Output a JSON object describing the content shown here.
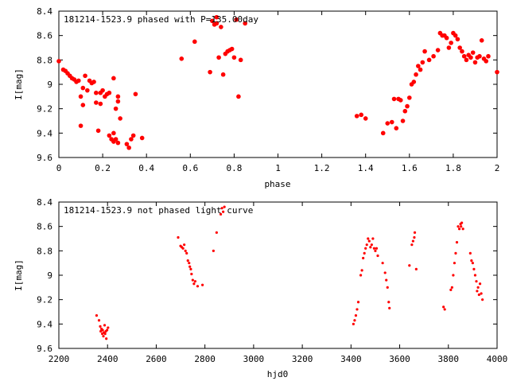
{
  "chart_data": [
    {
      "type": "scatter",
      "title": "181214-1523.9 phased with P=135.00day",
      "xlabel": "phase",
      "ylabel": "I[mag]",
      "xlim": [
        0,
        2
      ],
      "ylim": [
        9.6,
        8.4
      ],
      "y_inverted": true,
      "grid": false,
      "marker_color": "#ff0000",
      "x_ticks": [
        0,
        0.2,
        0.4,
        0.6,
        0.8,
        1,
        1.2,
        1.4,
        1.6,
        1.8,
        2
      ],
      "x_tick_labels": [
        "0",
        "0.2",
        "0.4",
        "0.6",
        "0.8",
        "1",
        "1.2",
        "1.4",
        "1.6",
        "1.8",
        "2"
      ],
      "y_ticks": [
        8.4,
        8.6,
        8.8,
        9,
        9.2,
        9.4,
        9.6
      ],
      "y_tick_labels": [
        "8.4",
        "8.6",
        "8.8",
        "9",
        "9.2",
        "9.4",
        "9.6"
      ],
      "points": [
        [
          0.0,
          8.81
        ],
        [
          0.02,
          8.88
        ],
        [
          0.03,
          8.89
        ],
        [
          0.04,
          8.91
        ],
        [
          0.05,
          8.93
        ],
        [
          0.06,
          8.95
        ],
        [
          0.07,
          8.96
        ],
        [
          0.08,
          8.98
        ],
        [
          0.09,
          8.97
        ],
        [
          0.1,
          9.1
        ],
        [
          0.1,
          9.34
        ],
        [
          0.11,
          9.03
        ],
        [
          0.11,
          9.17
        ],
        [
          0.12,
          8.93
        ],
        [
          0.13,
          9.05
        ],
        [
          0.14,
          8.97
        ],
        [
          0.15,
          8.99
        ],
        [
          0.16,
          8.98
        ],
        [
          0.17,
          9.07
        ],
        [
          0.17,
          9.15
        ],
        [
          0.18,
          9.38
        ],
        [
          0.19,
          9.16
        ],
        [
          0.19,
          9.07
        ],
        [
          0.2,
          9.05
        ],
        [
          0.21,
          9.1
        ],
        [
          0.22,
          9.08
        ],
        [
          0.23,
          9.07
        ],
        [
          0.23,
          9.42
        ],
        [
          0.24,
          9.45
        ],
        [
          0.25,
          9.4
        ],
        [
          0.25,
          9.47
        ],
        [
          0.26,
          9.45
        ],
        [
          0.27,
          9.48
        ],
        [
          0.25,
          8.95
        ],
        [
          0.26,
          9.2
        ],
        [
          0.27,
          9.14
        ],
        [
          0.28,
          9.28
        ],
        [
          0.27,
          9.1
        ],
        [
          0.31,
          9.49
        ],
        [
          0.32,
          9.52
        ],
        [
          0.33,
          9.45
        ],
        [
          0.34,
          9.42
        ],
        [
          0.35,
          9.08
        ],
        [
          0.38,
          9.44
        ],
        [
          0.56,
          8.79
        ],
        [
          0.62,
          8.65
        ],
        [
          0.69,
          8.9
        ],
        [
          0.7,
          8.48
        ],
        [
          0.71,
          8.51
        ],
        [
          0.72,
          8.5
        ],
        [
          0.72,
          8.45
        ],
        [
          0.73,
          8.78
        ],
        [
          0.74,
          8.53
        ],
        [
          0.75,
          8.92
        ],
        [
          0.76,
          8.75
        ],
        [
          0.77,
          8.73
        ],
        [
          0.78,
          8.72
        ],
        [
          0.79,
          8.71
        ],
        [
          0.8,
          8.78
        ],
        [
          0.81,
          8.47
        ],
        [
          0.82,
          9.1
        ],
        [
          0.83,
          8.8
        ],
        [
          0.85,
          8.5
        ],
        [
          1.36,
          9.26
        ],
        [
          1.38,
          9.25
        ],
        [
          1.4,
          9.28
        ],
        [
          1.48,
          9.4
        ],
        [
          1.5,
          9.32
        ],
        [
          1.52,
          9.31
        ],
        [
          1.53,
          9.12
        ],
        [
          1.54,
          9.36
        ],
        [
          1.55,
          9.12
        ],
        [
          1.56,
          9.13
        ],
        [
          1.57,
          9.3
        ],
        [
          1.58,
          9.22
        ],
        [
          1.59,
          9.18
        ],
        [
          1.6,
          9.11
        ],
        [
          1.61,
          9.0
        ],
        [
          1.62,
          8.98
        ],
        [
          1.63,
          8.92
        ],
        [
          1.64,
          8.85
        ],
        [
          1.65,
          8.88
        ],
        [
          1.66,
          8.82
        ],
        [
          1.67,
          8.73
        ],
        [
          1.69,
          8.8
        ],
        [
          1.71,
          8.77
        ],
        [
          1.73,
          8.72
        ],
        [
          1.74,
          8.58
        ],
        [
          1.75,
          8.6
        ],
        [
          1.76,
          8.6
        ],
        [
          1.77,
          8.62
        ],
        [
          1.78,
          8.7
        ],
        [
          1.79,
          8.66
        ],
        [
          1.8,
          8.58
        ],
        [
          1.81,
          8.6
        ],
        [
          1.82,
          8.63
        ],
        [
          1.83,
          8.7
        ],
        [
          1.84,
          8.73
        ],
        [
          1.85,
          8.77
        ],
        [
          1.86,
          8.8
        ],
        [
          1.87,
          8.76
        ],
        [
          1.88,
          8.78
        ],
        [
          1.89,
          8.74
        ],
        [
          1.9,
          8.82
        ],
        [
          1.91,
          8.78
        ],
        [
          1.92,
          8.77
        ],
        [
          1.93,
          8.64
        ],
        [
          1.94,
          8.79
        ],
        [
          1.95,
          8.81
        ],
        [
          1.96,
          8.77
        ],
        [
          2.0,
          8.9
        ]
      ]
    },
    {
      "type": "scatter",
      "title": "181214-1523.9 not phased light curve",
      "xlabel": "hjd0",
      "ylabel": "I[mag]",
      "xlim": [
        2200,
        4000
      ],
      "ylim": [
        9.6,
        8.4
      ],
      "y_inverted": true,
      "grid": false,
      "marker_color": "#ff0000",
      "x_ticks": [
        2200,
        2400,
        2600,
        2800,
        3000,
        3200,
        3400,
        3600,
        3800,
        4000
      ],
      "x_tick_labels": [
        "2200",
        "2400",
        "2600",
        "2800",
        "3000",
        "3200",
        "3400",
        "3600",
        "3800",
        "4000"
      ],
      "y_ticks": [
        8.4,
        8.6,
        8.8,
        9,
        9.2,
        9.4,
        9.6
      ],
      "y_tick_labels": [
        "8.4",
        "8.6",
        "8.8",
        "9",
        "9.2",
        "9.4",
        "9.6"
      ],
      "points": [
        [
          2355,
          9.33
        ],
        [
          2365,
          9.37
        ],
        [
          2370,
          9.42
        ],
        [
          2372,
          9.46
        ],
        [
          2375,
          9.44
        ],
        [
          2378,
          9.48
        ],
        [
          2380,
          9.45
        ],
        [
          2383,
          9.5
        ],
        [
          2385,
          9.47
        ],
        [
          2388,
          9.41
        ],
        [
          2390,
          9.48
        ],
        [
          2393,
          9.46
        ],
        [
          2395,
          9.52
        ],
        [
          2398,
          9.45
        ],
        [
          2402,
          9.43
        ],
        [
          2690,
          8.69
        ],
        [
          2700,
          8.76
        ],
        [
          2705,
          8.77
        ],
        [
          2710,
          8.78
        ],
        [
          2715,
          8.75
        ],
        [
          2720,
          8.8
        ],
        [
          2725,
          8.82
        ],
        [
          2730,
          8.88
        ],
        [
          2735,
          8.9
        ],
        [
          2738,
          8.93
        ],
        [
          2742,
          8.95
        ],
        [
          2745,
          8.99
        ],
        [
          2750,
          9.04
        ],
        [
          2755,
          9.07
        ],
        [
          2760,
          9.05
        ],
        [
          2770,
          9.09
        ],
        [
          2790,
          9.08
        ],
        [
          2835,
          8.8
        ],
        [
          2848,
          8.65
        ],
        [
          2865,
          8.5
        ],
        [
          2870,
          8.45
        ],
        [
          2875,
          8.48
        ],
        [
          2880,
          8.44
        ],
        [
          3410,
          9.4
        ],
        [
          3415,
          9.37
        ],
        [
          3420,
          9.33
        ],
        [
          3425,
          9.28
        ],
        [
          3430,
          9.22
        ],
        [
          3440,
          9.0
        ],
        [
          3445,
          8.96
        ],
        [
          3450,
          8.86
        ],
        [
          3455,
          8.82
        ],
        [
          3460,
          8.78
        ],
        [
          3465,
          8.75
        ],
        [
          3470,
          8.7
        ],
        [
          3475,
          8.72
        ],
        [
          3480,
          8.77
        ],
        [
          3485,
          8.75
        ],
        [
          3490,
          8.7
        ],
        [
          3495,
          8.78
        ],
        [
          3500,
          8.8
        ],
        [
          3505,
          8.78
        ],
        [
          3510,
          8.84
        ],
        [
          3530,
          8.9
        ],
        [
          3540,
          8.98
        ],
        [
          3545,
          9.04
        ],
        [
          3550,
          9.1
        ],
        [
          3555,
          9.22
        ],
        [
          3558,
          9.27
        ],
        [
          3640,
          8.92
        ],
        [
          3650,
          8.75
        ],
        [
          3655,
          8.72
        ],
        [
          3660,
          8.69
        ],
        [
          3662,
          8.65
        ],
        [
          3668,
          8.95
        ],
        [
          3780,
          9.26
        ],
        [
          3785,
          9.28
        ],
        [
          3810,
          9.12
        ],
        [
          3815,
          9.1
        ],
        [
          3820,
          9.0
        ],
        [
          3825,
          8.9
        ],
        [
          3830,
          8.82
        ],
        [
          3835,
          8.73
        ],
        [
          3840,
          8.6
        ],
        [
          3845,
          8.62
        ],
        [
          3850,
          8.58
        ],
        [
          3852,
          8.6
        ],
        [
          3855,
          8.57
        ],
        [
          3860,
          8.62
        ],
        [
          3890,
          8.82
        ],
        [
          3895,
          8.88
        ],
        [
          3900,
          8.9
        ],
        [
          3905,
          8.95
        ],
        [
          3910,
          9.0
        ],
        [
          3915,
          9.05
        ],
        [
          3918,
          9.13
        ],
        [
          3922,
          9.1
        ],
        [
          3926,
          9.16
        ],
        [
          3930,
          9.07
        ],
        [
          3935,
          9.15
        ],
        [
          3940,
          9.2
        ]
      ]
    }
  ]
}
